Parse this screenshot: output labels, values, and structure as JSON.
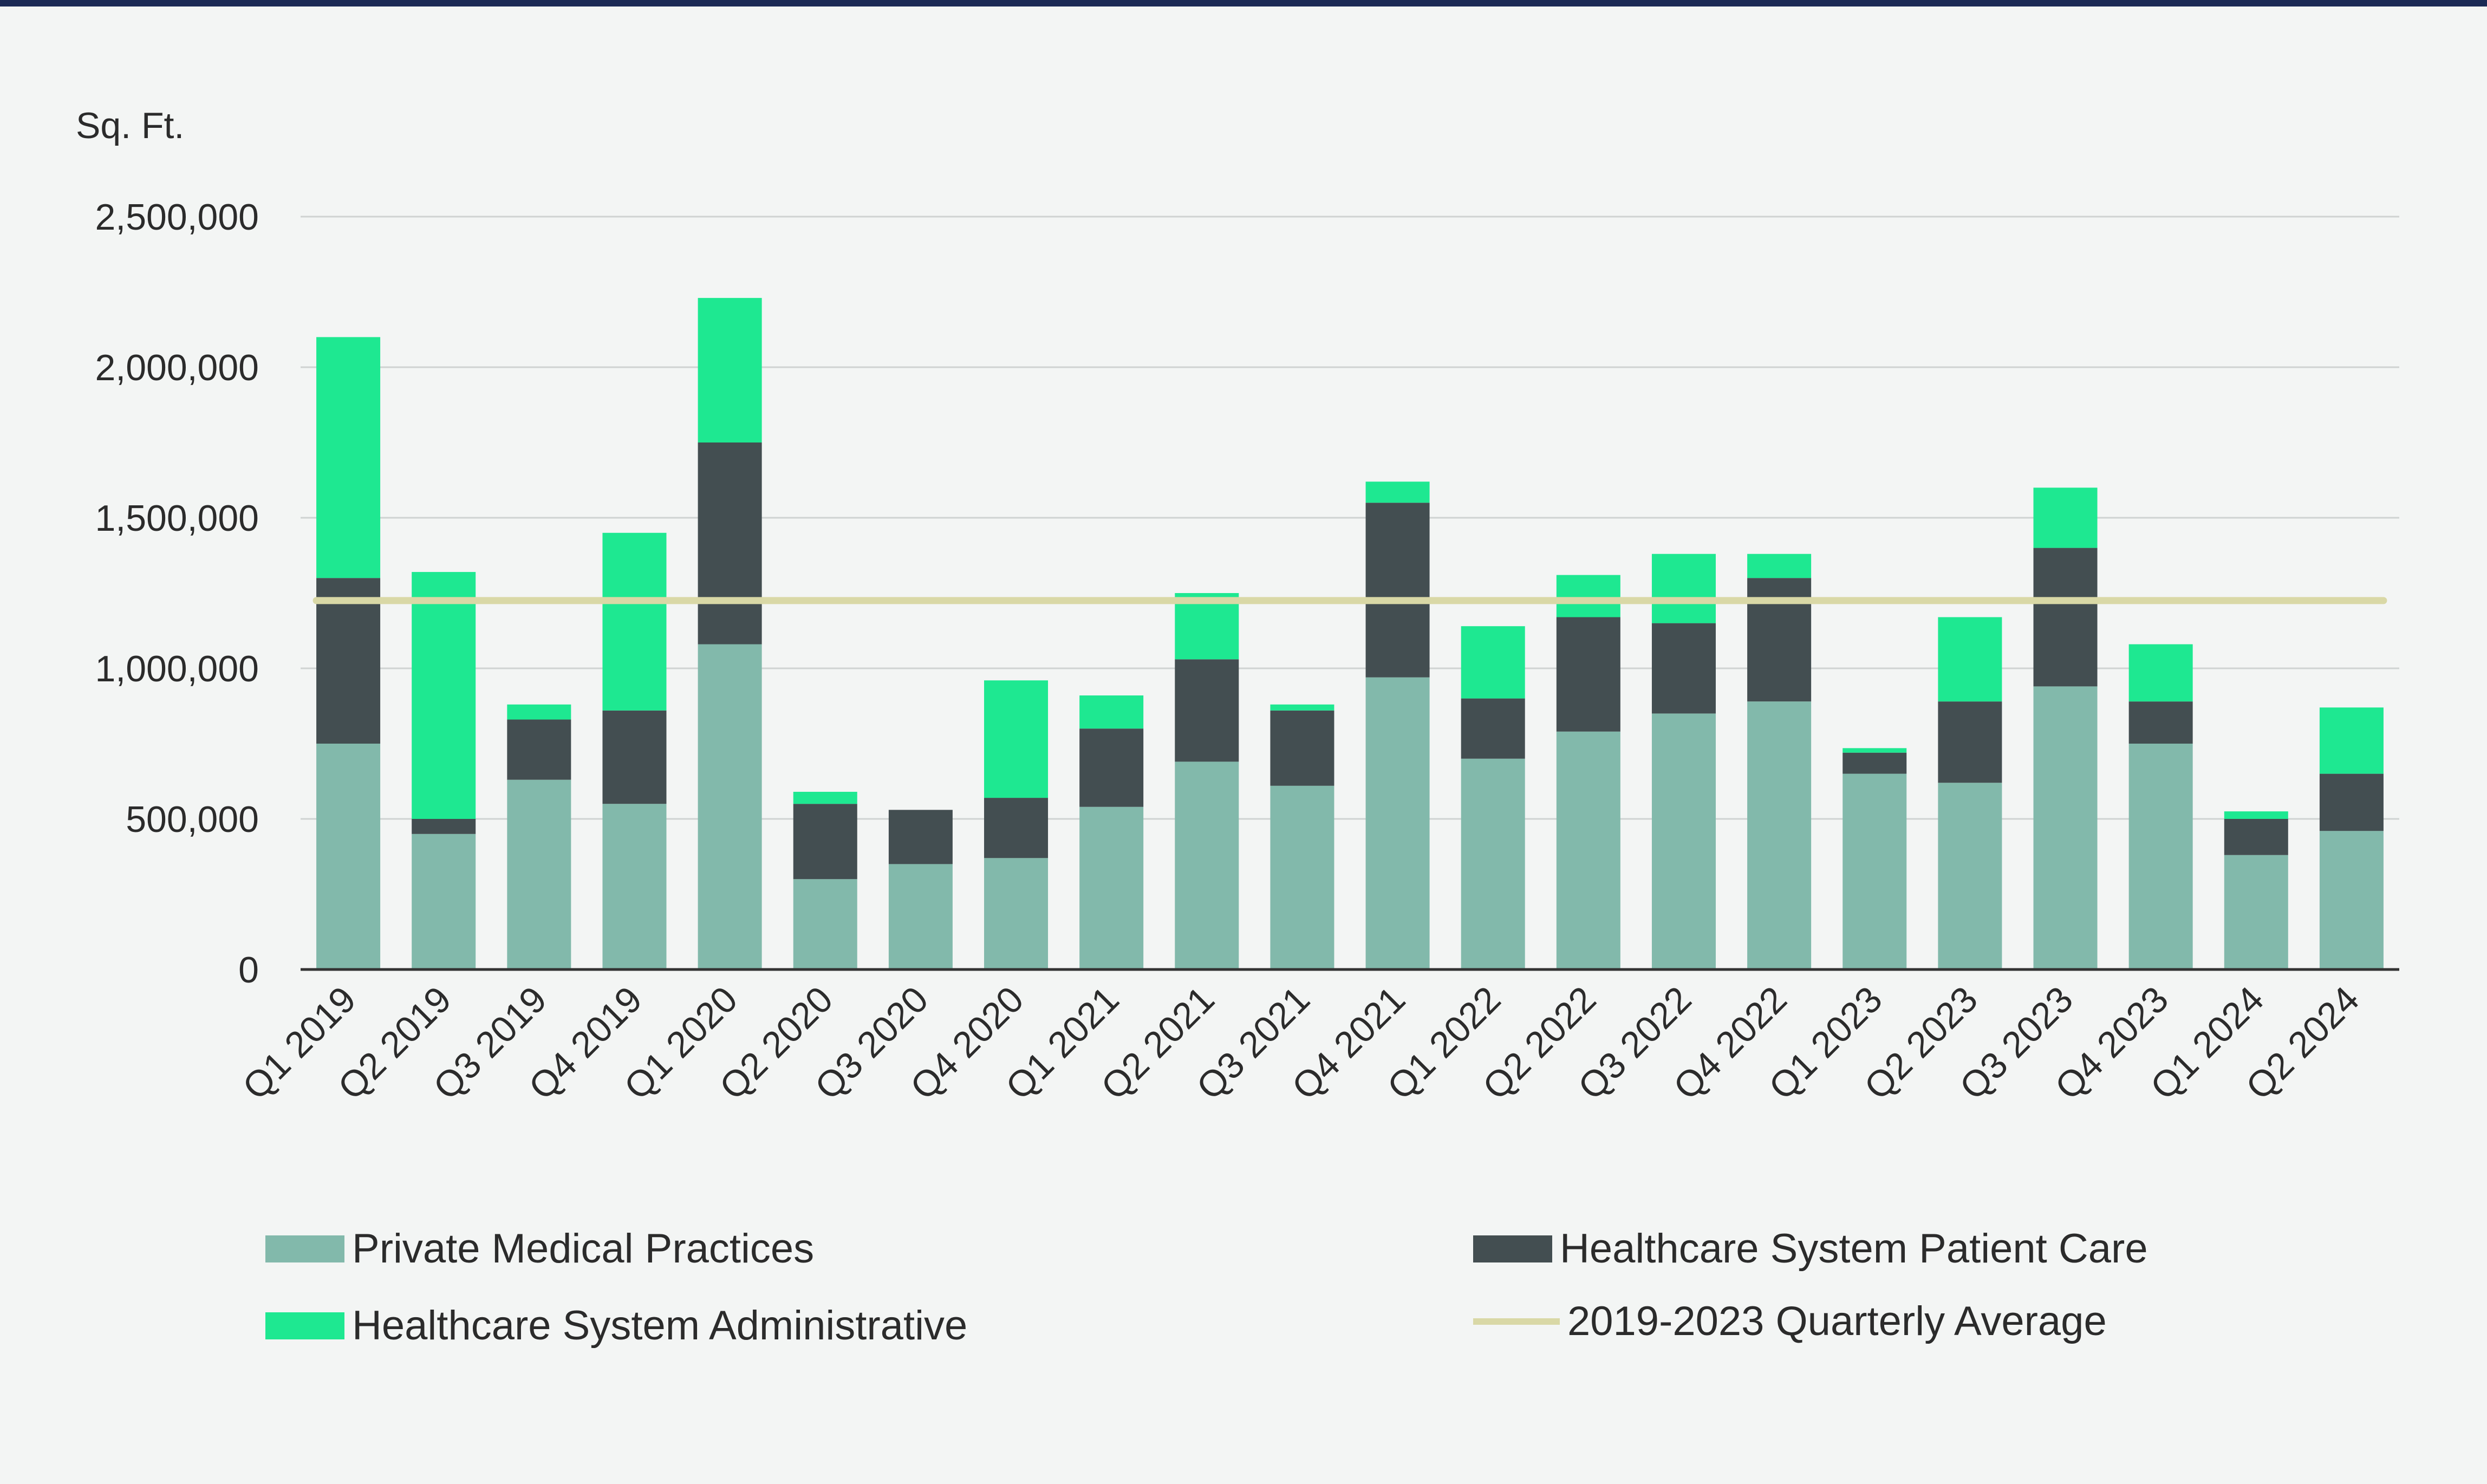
{
  "chart_data": {
    "type": "bar",
    "stacked": true,
    "ylabel": "Sq. Ft.",
    "ylim": [
      0,
      2500000
    ],
    "yticks": [
      0,
      500000,
      1000000,
      1500000,
      2000000,
      2500000
    ],
    "ytick_labels": [
      "0",
      "500,000",
      "1,000,000",
      "1,500,000",
      "2,000,000",
      "2,500,000"
    ],
    "categories": [
      "Q1 2019",
      "Q2 2019",
      "Q3 2019",
      "Q4 2019",
      "Q1 2020",
      "Q2 2020",
      "Q3 2020",
      "Q4 2020",
      "Q1 2021",
      "Q2 2021",
      "Q3 2021",
      "Q4 2021",
      "Q1 2022",
      "Q2 2022",
      "Q3 2022",
      "Q4 2022",
      "Q1 2023",
      "Q2 2023",
      "Q3 2023",
      "Q4 2023",
      "Q1 2024",
      "Q2 2024"
    ],
    "series": [
      {
        "name": "Private Medical Practices",
        "color": "#82b9ab",
        "values": [
          750000,
          450000,
          630000,
          550000,
          1080000,
          300000,
          350000,
          370000,
          540000,
          690000,
          610000,
          970000,
          700000,
          790000,
          850000,
          890000,
          650000,
          620000,
          940000,
          750000,
          380000,
          460000
        ]
      },
      {
        "name": "Healthcare System Patient Care",
        "color": "#434e51",
        "values": [
          550000,
          50000,
          200000,
          310000,
          670000,
          250000,
          180000,
          200000,
          260000,
          340000,
          250000,
          580000,
          200000,
          380000,
          300000,
          410000,
          70000,
          270000,
          460000,
          140000,
          120000,
          190000
        ]
      },
      {
        "name": "Healthcare System Administrative",
        "color": "#1ee891",
        "values": [
          800000,
          820000,
          50000,
          590000,
          480000,
          40000,
          0,
          390000,
          110000,
          220000,
          20000,
          70000,
          240000,
          140000,
          230000,
          80000,
          15000,
          280000,
          200000,
          190000,
          25000,
          220000
        ]
      }
    ],
    "average_line": {
      "name": "2019-2023 Quarterly Average",
      "value": 1225000,
      "color": "#d9d8a6"
    },
    "grid": true,
    "legend_position": "bottom"
  },
  "colors": {
    "gridline": "#cfd3d2",
    "axis": "#333333",
    "background": "#f3f5f4",
    "top_rule": "#1b2a55"
  }
}
